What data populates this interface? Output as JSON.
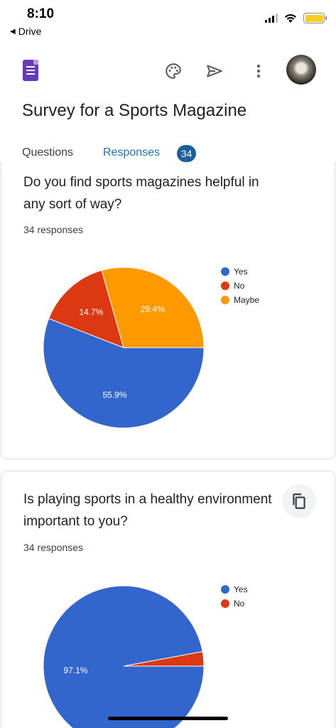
{
  "status": {
    "time": "8:10",
    "back_label": "Drive"
  },
  "app": {
    "icons": [
      "google-forms-logo",
      "palette-icon",
      "send-icon",
      "more-vert-icon",
      "avatar"
    ],
    "title": "Survey for a Sports Magazine"
  },
  "tabs": {
    "questions": "Questions",
    "responses": "Responses",
    "responses_count": "34",
    "active": "responses"
  },
  "colors": {
    "yes": "#3366cc",
    "no": "#dc3912",
    "maybe": "#ff9900",
    "accent": "#1f6fb5"
  },
  "questions": [
    {
      "text": "Do you find sports magazines helpful in any sort of way?",
      "responses": "34 responses",
      "legend": [
        "Yes",
        "No",
        "Maybe"
      ],
      "slice_labels": [
        "55.9%",
        "14.7%",
        "29.4%"
      ]
    },
    {
      "text": "Is playing sports in a healthy environment important to you?",
      "responses": "34 responses",
      "legend": [
        "Yes",
        "No"
      ],
      "slice_labels": [
        "97.1%",
        ""
      ]
    }
  ],
  "chart_data": [
    {
      "type": "pie",
      "categories": [
        "Yes",
        "No",
        "Maybe"
      ],
      "values": [
        55.9,
        14.7,
        29.4
      ],
      "colors": [
        "#3366cc",
        "#dc3912",
        "#ff9900"
      ],
      "legend": "right"
    },
    {
      "type": "pie",
      "categories": [
        "Yes",
        "No"
      ],
      "values": [
        97.1,
        2.9
      ],
      "colors": [
        "#3366cc",
        "#dc3912"
      ],
      "legend": "right"
    }
  ]
}
